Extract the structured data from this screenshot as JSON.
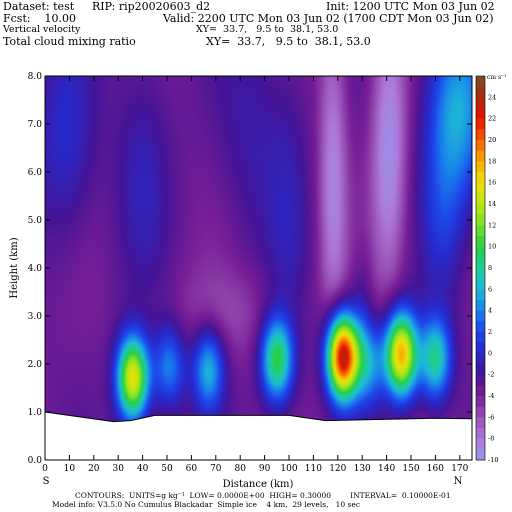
{
  "header": {
    "dataset": "Dataset: test",
    "rip": "RIP: rip20020603_d2",
    "init": "Init: 1200 UTC Mon 03 Jun 02",
    "fcst": "Fcst:    10.00",
    "valid": "Valid: 2200 UTC Mon 03 Jun 02 (1700 CDT Mon 03 Jun 02)",
    "field1": "Vertical velocity",
    "field1_xy": "XY=  33.7,   9.5 to  38.1, 53.0",
    "field2": "Total cloud mixing ratio",
    "field2_xy": "XY=  33.7,   9.5 to  38.1, 53.0"
  },
  "footer": {
    "contours": "CONTOURS:  UNITS=g kg⁻¹  LOW= 0.0000E+00  HIGH= 0.30000        INTERVAL=  0.10000E-01",
    "model": "Model info: V3.5.0 No Cumulus Blackadar  Simple ice    4 km,  29 levels,   10 sec"
  },
  "chart_data": {
    "type": "heatmap",
    "xlabel": "Distance (km)",
    "ylabel": "Height (km)",
    "xlim": [
      0,
      175
    ],
    "ylim": [
      0,
      8
    ],
    "xticks": [
      "0",
      "10",
      "20",
      "30",
      "40",
      "50",
      "60",
      "70",
      "80",
      "90",
      "100",
      "110",
      "120",
      "130",
      "140",
      "150",
      "160",
      "170"
    ],
    "yticks": [
      "0.0",
      "1.0",
      "2.0",
      "3.0",
      "4.0",
      "5.0",
      "6.0",
      "7.0",
      "8.0"
    ],
    "end_labels": {
      "left": "S",
      "right": "N"
    },
    "colorbar": {
      "unit": "cm s⁻¹",
      "labels": [
        "24",
        "22",
        "20",
        "18",
        "16",
        "14",
        "12",
        "10",
        "8",
        "6",
        "4",
        "2",
        "0",
        "-2",
        "-4",
        "-6",
        "-8",
        "-10"
      ]
    },
    "terrain_km": [
      [
        0,
        1.0
      ],
      [
        28,
        0.8
      ],
      [
        35,
        0.82
      ],
      [
        45,
        0.93
      ],
      [
        100,
        0.93
      ],
      [
        115,
        0.82
      ],
      [
        160,
        0.87
      ],
      [
        175,
        0.86
      ]
    ],
    "features": [
      {
        "x": 36,
        "z": 1.7,
        "peak": 16
      },
      {
        "x": 51,
        "z": 1.95,
        "peak": 4
      },
      {
        "x": 67,
        "z": 1.9,
        "peak": 6
      },
      {
        "x": 95,
        "z": 2.1,
        "peak": 10
      },
      {
        "x": 122,
        "z": 2.15,
        "peak": 24
      },
      {
        "x": 133,
        "z": 2.0,
        "peak": 4
      },
      {
        "x": 146,
        "z": 2.2,
        "peak": 18
      },
      {
        "x": 160,
        "z": 2.1,
        "peak": 8
      }
    ]
  }
}
